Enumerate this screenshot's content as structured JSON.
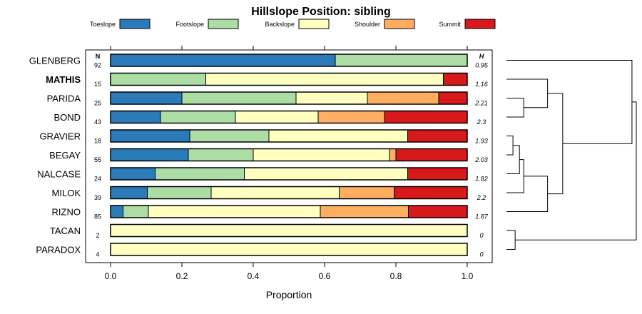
{
  "chart_data": {
    "type": "bar",
    "stacked": true,
    "orientation": "horizontal",
    "title": "Hillslope Position: sibling",
    "xlabel": "Proportion",
    "xlim": [
      0,
      1
    ],
    "x_ticks": [
      "0.0",
      "0.2",
      "0.4",
      "0.6",
      "0.8",
      "1.0"
    ],
    "n_header": "N",
    "h_header": "H",
    "legend_position": "top",
    "series": [
      {
        "name": "Toeslope",
        "color": "#2b7bb9"
      },
      {
        "name": "Footslope",
        "color": "#abdda4"
      },
      {
        "name": "Backslope",
        "color": "#ffffbf"
      },
      {
        "name": "Shoulder",
        "color": "#fdae61"
      },
      {
        "name": "Summit",
        "color": "#d7191c"
      }
    ],
    "categories": [
      {
        "label": "GLENBERG",
        "n": "92",
        "h": "0.95",
        "bold": false,
        "values": [
          0.63,
          0.37,
          0,
          0,
          0
        ]
      },
      {
        "label": "MATHIS",
        "n": "15",
        "h": "1.16",
        "bold": true,
        "values": [
          0,
          0.267,
          0.666,
          0,
          0.067
        ]
      },
      {
        "label": "PARIDA",
        "n": "25",
        "h": "2.21",
        "bold": false,
        "values": [
          0.2,
          0.32,
          0.2,
          0.2,
          0.08
        ]
      },
      {
        "label": "BOND",
        "n": "43",
        "h": "2.3",
        "bold": false,
        "values": [
          0.14,
          0.21,
          0.232,
          0.186,
          0.232
        ]
      },
      {
        "label": "GRAVIER",
        "n": "18",
        "h": "1.93",
        "bold": false,
        "values": [
          0.222,
          0.222,
          0.389,
          0,
          0.167
        ]
      },
      {
        "label": "BEGAY",
        "n": "55",
        "h": "2.03",
        "bold": false,
        "values": [
          0.218,
          0.182,
          0.382,
          0.018,
          0.2
        ]
      },
      {
        "label": "NALCASE",
        "n": "24",
        "h": "1.82",
        "bold": false,
        "values": [
          0.125,
          0.25,
          0.458,
          0,
          0.167
        ]
      },
      {
        "label": "MILOK",
        "n": "39",
        "h": "2.2",
        "bold": false,
        "values": [
          0.103,
          0.179,
          0.359,
          0.154,
          0.205
        ]
      },
      {
        "label": "RIZNO",
        "n": "85",
        "h": "1.87",
        "bold": false,
        "values": [
          0.035,
          0.071,
          0.482,
          0.247,
          0.165
        ]
      },
      {
        "label": "TACAN",
        "n": "2",
        "h": "0",
        "bold": false,
        "values": [
          0,
          0,
          1,
          0,
          0
        ]
      },
      {
        "label": "PARADOX",
        "n": "4",
        "h": "0",
        "bold": false,
        "values": [
          0,
          0,
          1,
          0,
          0
        ]
      }
    ],
    "dendrogram": {
      "merges": [
        {
          "a": "leaf:4",
          "b": "leaf:5",
          "height": 0.03
        },
        {
          "a": "node:0",
          "b": "leaf:6",
          "height": 0.06
        },
        {
          "a": "node:1",
          "b": "leaf:7",
          "height": 0.08
        },
        {
          "a": "node:2",
          "b": "leaf:8",
          "height": 0.19
        },
        {
          "a": "leaf:2",
          "b": "leaf:3",
          "height": 0.08
        },
        {
          "a": "leaf:1",
          "b": "node:4",
          "height": 0.19
        },
        {
          "a": "node:5",
          "b": "node:3",
          "height": 0.26
        },
        {
          "a": "leaf:9",
          "b": "leaf:10",
          "height": 0.04
        },
        {
          "a": "leaf:0",
          "b": "node:6",
          "height": 0.58
        },
        {
          "a": "node:8",
          "b": "node:7",
          "height": 0.6
        }
      ]
    }
  }
}
